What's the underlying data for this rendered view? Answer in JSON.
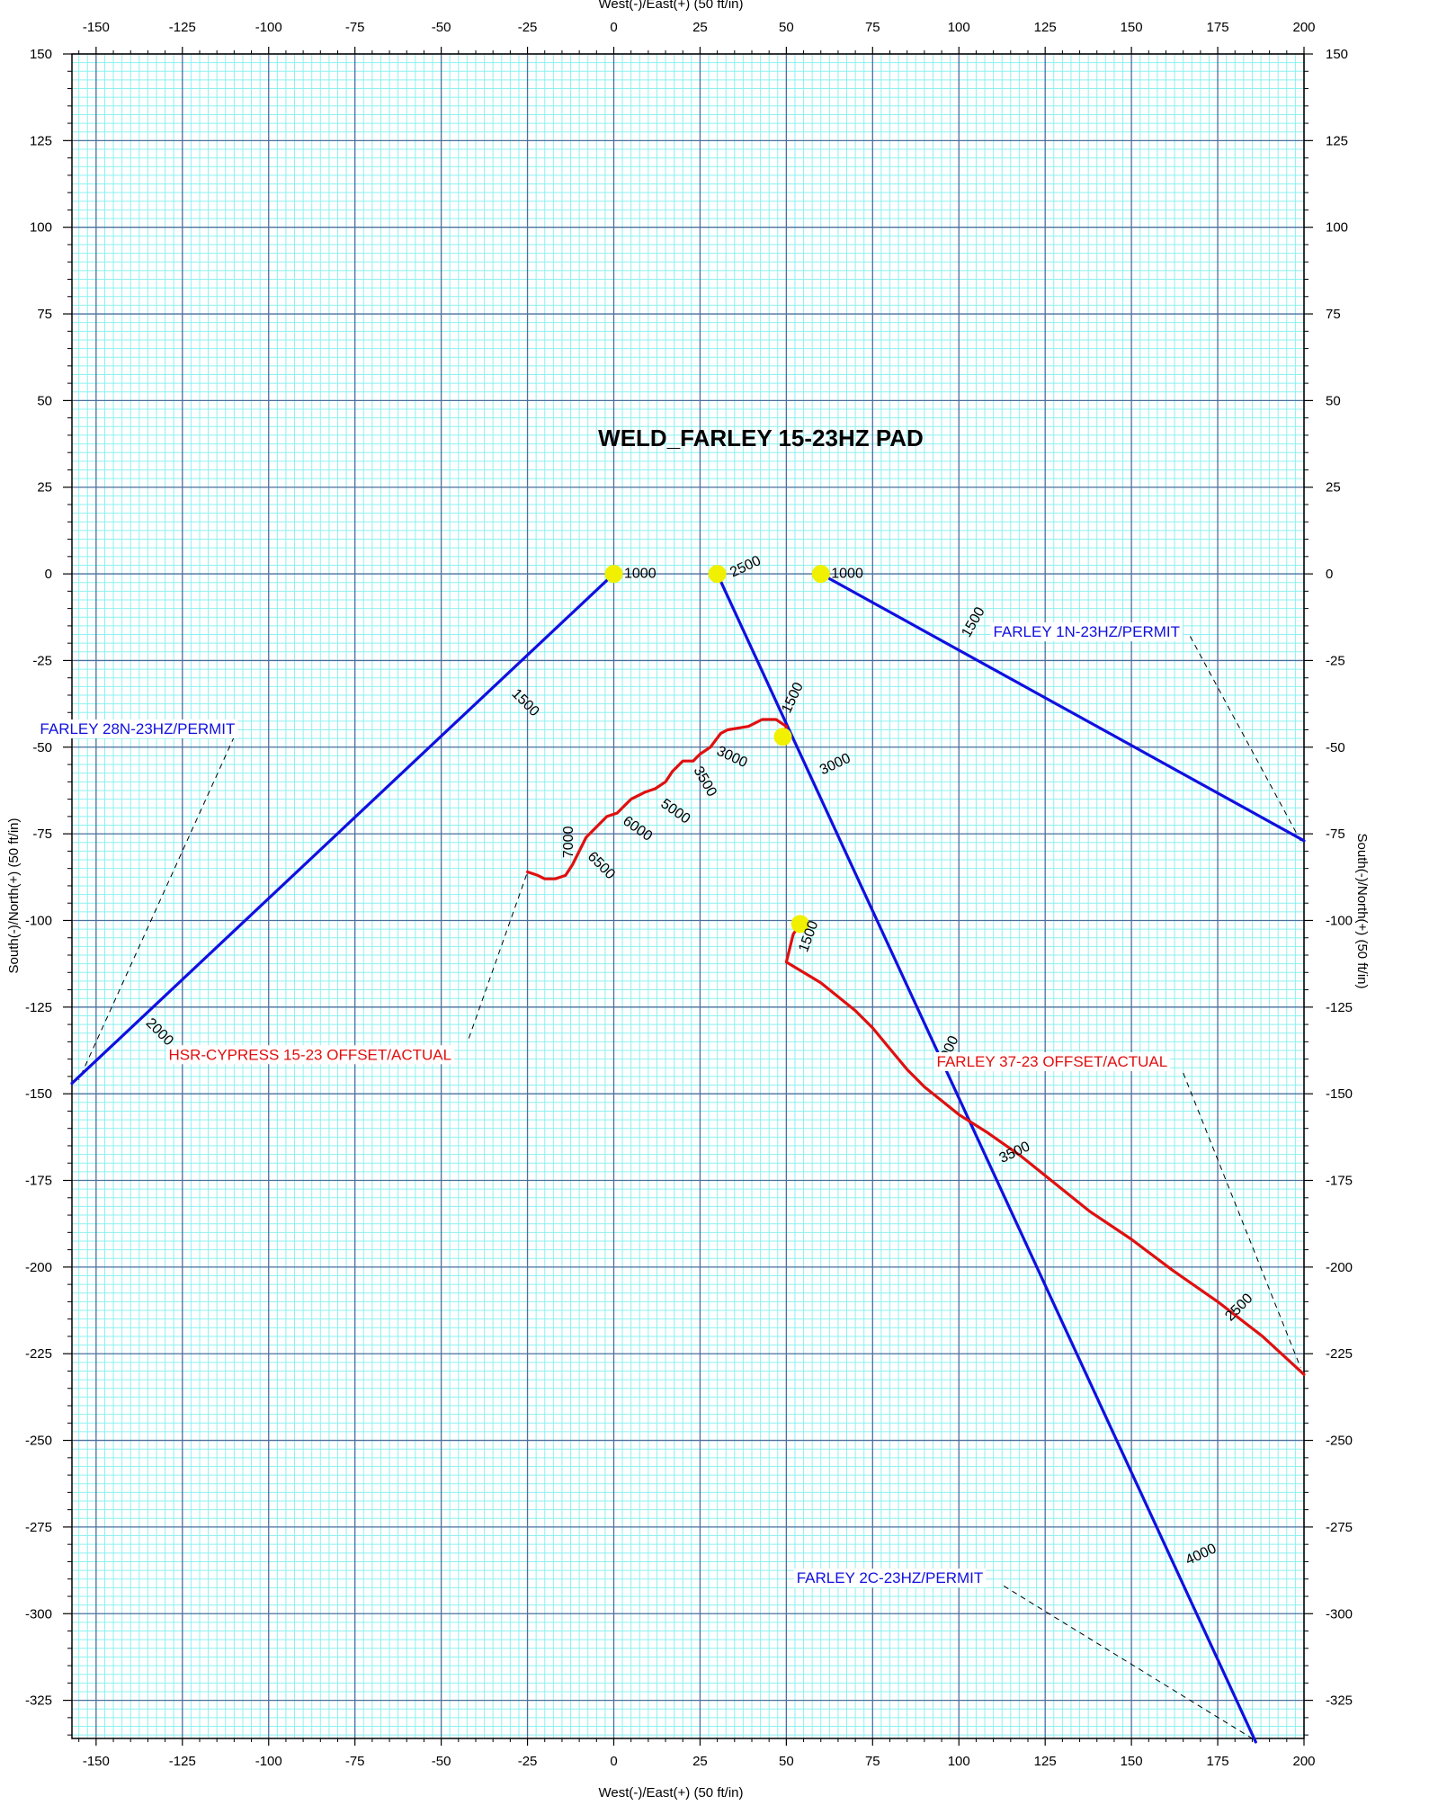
{
  "chart_data": {
    "type": "line",
    "title": "WELD_FARLEY 15-23HZ PAD",
    "xlabel": "West(-)/East(+) (50 ft/in)",
    "ylabel": "South(-)/North(+) (50 ft/in)",
    "xlim": [
      -157,
      200
    ],
    "ylim": [
      -336,
      150
    ],
    "x_ticks": [
      -150,
      -125,
      -100,
      -75,
      -50,
      -25,
      0,
      25,
      50,
      75,
      100,
      125,
      150,
      175,
      200
    ],
    "y_ticks": [
      150,
      125,
      100,
      75,
      50,
      25,
      0,
      -25,
      -50,
      -75,
      -100,
      -125,
      -150,
      -175,
      -200,
      -225,
      -250,
      -275,
      -300,
      -325
    ],
    "grid": true,
    "colors": {
      "major_grid": "#4a6f9c",
      "minor_grid": "#8ef0f0",
      "permit": "#1010e0",
      "actual": "#e01010",
      "marker": "#f0f000"
    },
    "series": [
      {
        "name": "FARLEY 28N-23HZ/PERMIT",
        "color": "#1010e0",
        "points": [
          [
            0,
            0
          ],
          [
            -157,
            -147
          ]
        ],
        "markers": [
          [
            0,
            0
          ]
        ],
        "md_labels": [
          {
            "text": "1000",
            "x": 3,
            "y": 0,
            "rot": 0
          },
          {
            "text": "1500",
            "x": -29,
            "y": -34,
            "rot": 45
          },
          {
            "text": "2000",
            "x": -135,
            "y": -129,
            "rot": 45
          }
        ]
      },
      {
        "name": "FARLEY 2C-23HZ/PERMIT",
        "color": "#1010e0",
        "points": [
          [
            30,
            0
          ],
          [
            186,
            -337
          ]
        ],
        "markers": [
          [
            30,
            0
          ]
        ],
        "md_labels": [
          {
            "text": "2500",
            "x": 34,
            "y": 0,
            "rot": -25
          },
          {
            "text": "1500",
            "x": 50,
            "y": -40,
            "rot": -65
          },
          {
            "text": "3000",
            "x": 60,
            "y": -57,
            "rot": -25
          },
          {
            "text": "2000",
            "x": 95,
            "y": -142,
            "rot": -65
          },
          {
            "text": "3500",
            "x": 112,
            "y": -169,
            "rot": -25
          },
          {
            "text": "4000",
            "x": 166,
            "y": -285,
            "rot": -25
          }
        ]
      },
      {
        "name": "FARLEY 1N-23HZ/PERMIT",
        "color": "#1010e0",
        "points": [
          [
            60,
            0
          ],
          [
            200,
            -77
          ]
        ],
        "markers": [
          [
            60,
            0
          ]
        ],
        "md_labels": [
          {
            "text": "1000",
            "x": 63,
            "y": 0,
            "rot": 0
          },
          {
            "text": "1500",
            "x": 102,
            "y": -18,
            "rot": -60
          }
        ]
      },
      {
        "name": "HSR-CYPRESS 15-23 OFFSET/ACTUAL",
        "color": "#e01010",
        "points": [
          [
            49,
            -47
          ],
          [
            50,
            -44
          ],
          [
            47,
            -42
          ],
          [
            43,
            -42
          ],
          [
            39,
            -44
          ],
          [
            33,
            -45
          ],
          [
            31,
            -46
          ],
          [
            28,
            -50
          ],
          [
            25,
            -52
          ],
          [
            24,
            -53
          ],
          [
            23,
            -54
          ],
          [
            20,
            -54
          ],
          [
            17,
            -57
          ],
          [
            15,
            -60
          ],
          [
            12,
            -62
          ],
          [
            9,
            -63
          ],
          [
            5,
            -65
          ],
          [
            3,
            -67
          ],
          [
            1,
            -69
          ],
          [
            -2,
            -70
          ],
          [
            -4,
            -72
          ],
          [
            -6,
            -74
          ],
          [
            -8,
            -76
          ],
          [
            -10,
            -80
          ],
          [
            -12,
            -84
          ],
          [
            -14,
            -87
          ],
          [
            -17,
            -88
          ],
          [
            -20,
            -88
          ],
          [
            -22,
            -87
          ],
          [
            -25,
            -86
          ]
        ],
        "markers": [
          [
            49,
            -47
          ]
        ],
        "md_labels": [
          {
            "text": "3000",
            "x": 30,
            "y": -51,
            "rot": 25
          },
          {
            "text": "3500",
            "x": 24,
            "y": -56,
            "rot": 60
          },
          {
            "text": "5000",
            "x": 14,
            "y": -66,
            "rot": 35
          },
          {
            "text": "6000",
            "x": 3,
            "y": -71,
            "rot": 35
          },
          {
            "text": "6500",
            "x": -7,
            "y": -81,
            "rot": 45
          },
          {
            "text": "7000",
            "x": -13,
            "y": -82,
            "rot": -90
          }
        ]
      },
      {
        "name": "FARLEY 37-23 OFFSET/ACTUAL",
        "color": "#e01010",
        "points": [
          [
            54,
            -101
          ],
          [
            52,
            -104
          ],
          [
            51,
            -108
          ],
          [
            50,
            -112
          ],
          [
            55,
            -115
          ],
          [
            60,
            -118
          ],
          [
            65,
            -122
          ],
          [
            70,
            -126
          ],
          [
            75,
            -131
          ],
          [
            80,
            -137
          ],
          [
            85,
            -143
          ],
          [
            90,
            -148
          ],
          [
            95,
            -152
          ],
          [
            100,
            -156
          ],
          [
            108,
            -161
          ],
          [
            118,
            -168
          ],
          [
            128,
            -176
          ],
          [
            138,
            -184
          ],
          [
            150,
            -192
          ],
          [
            162,
            -201
          ],
          [
            175,
            -210
          ],
          [
            188,
            -220
          ],
          [
            200,
            -231
          ]
        ],
        "markers": [
          [
            54,
            -101
          ]
        ],
        "md_labels": [
          {
            "text": "1500",
            "x": 55,
            "y": -109,
            "rot": -70
          },
          {
            "text": "2500",
            "x": 178,
            "y": -215,
            "rot": -45
          }
        ]
      }
    ],
    "annotations": [
      {
        "text": "FARLEY 28N-23HZ/PERMIT",
        "color": "#1010e0",
        "x": -138,
        "y": -45,
        "leader": [
          [
            -110,
            -47
          ],
          [
            -155,
            -146
          ]
        ]
      },
      {
        "text": "FARLEY 1N-23HZ/PERMIT",
        "color": "#1010e0",
        "x": 137,
        "y": -17,
        "leader": [
          [
            167,
            -18
          ],
          [
            199,
            -77
          ]
        ]
      },
      {
        "text": "HSR-CYPRESS 15-23 OFFSET/ACTUAL",
        "color": "#e01010",
        "x": -88,
        "y": -139,
        "leader": [
          [
            -42,
            -134
          ],
          [
            -25,
            -86
          ]
        ]
      },
      {
        "text": "FARLEY 37-23 OFFSET/ACTUAL",
        "color": "#e01010",
        "x": 127,
        "y": -141,
        "leader": [
          [
            165,
            -144
          ],
          [
            199,
            -229
          ]
        ]
      },
      {
        "text": "FARLEY 2C-23HZ/PERMIT",
        "color": "#1010e0",
        "x": 80,
        "y": -290,
        "leader": [
          [
            113,
            -292
          ],
          [
            185,
            -336
          ]
        ]
      }
    ]
  }
}
